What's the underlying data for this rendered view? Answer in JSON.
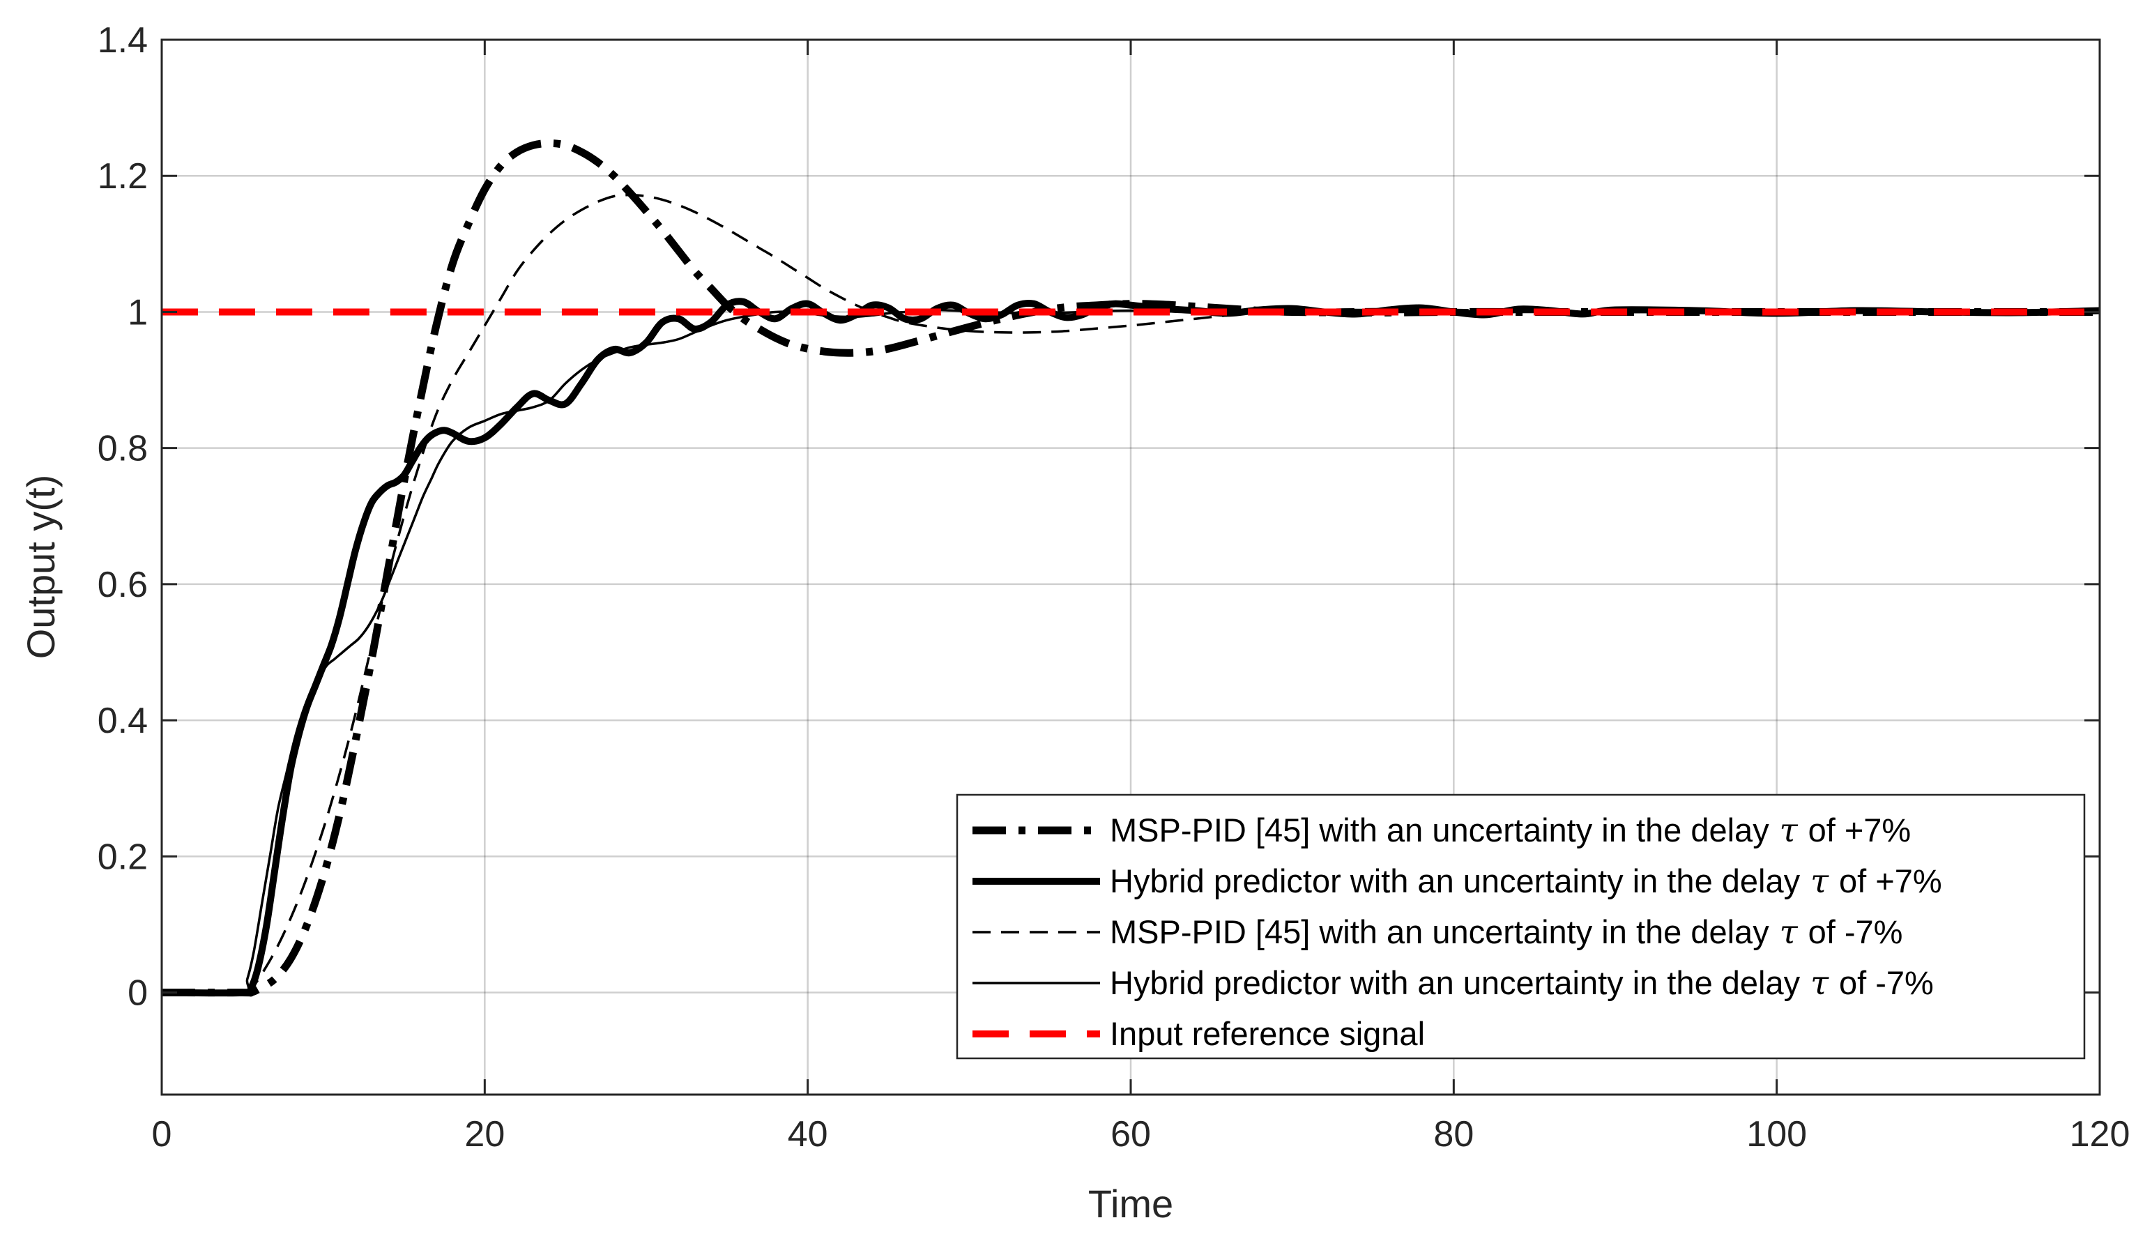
{
  "chart_data": {
    "type": "line",
    "title": "",
    "xlabel": "Time",
    "ylabel": "Output y(t)",
    "xlim": [
      0,
      120
    ],
    "ylim": [
      -0.15,
      1.4
    ],
    "xticks": [
      0,
      20,
      40,
      60,
      80,
      100,
      120
    ],
    "yticks": [
      0,
      0.2,
      0.4,
      0.6,
      0.8,
      1,
      1.2,
      1.4
    ],
    "xtick_labels": [
      "0",
      "20",
      "40",
      "60",
      "80",
      "100",
      "120"
    ],
    "ytick_labels": [
      "0",
      "0.2",
      "0.4",
      "0.6",
      "0.8",
      "1",
      "1.2",
      "1.4"
    ],
    "grid": true,
    "legend_position": "bottom-right",
    "series": [
      {
        "name": "MSP-PID [45] with an uncertainty in the delay τ of +7%",
        "legend_prefix": "MSP-PID [45] with an uncertainty in the delay",
        "legend_suffix": "of +7%",
        "style": "dashdot-thick",
        "color": "#000000",
        "x": [
          0,
          5,
          5.5,
          6,
          7,
          8,
          9,
          10,
          11,
          12,
          13,
          14,
          15,
          16,
          17,
          18,
          19,
          20,
          21,
          22,
          23,
          24,
          25,
          26,
          27,
          28,
          29,
          30,
          31,
          32,
          33,
          34,
          35,
          36,
          37,
          38,
          39,
          40,
          41,
          42,
          43,
          44,
          45,
          46,
          48,
          50,
          52,
          54,
          56,
          58,
          60,
          62,
          64,
          66,
          68,
          70,
          75,
          80,
          85,
          90,
          100,
          110,
          120
        ],
        "y": [
          0,
          0,
          0,
          0.005,
          0.02,
          0.05,
          0.1,
          0.17,
          0.26,
          0.37,
          0.49,
          0.62,
          0.75,
          0.87,
          0.98,
          1.07,
          1.13,
          1.18,
          1.215,
          1.235,
          1.245,
          1.248,
          1.245,
          1.235,
          1.22,
          1.2,
          1.175,
          1.148,
          1.12,
          1.09,
          1.06,
          1.035,
          1.01,
          0.99,
          0.975,
          0.962,
          0.952,
          0.946,
          0.942,
          0.94,
          0.94,
          0.942,
          0.946,
          0.952,
          0.965,
          0.978,
          0.99,
          1.0,
          1.007,
          1.01,
          1.012,
          1.011,
          1.008,
          1.005,
          1.002,
          1.0,
          0.999,
          1.0,
          1.0,
          1.0,
          1.0,
          1.0,
          1.0
        ]
      },
      {
        "name": "Hybrid predictor with an uncertainty in the delay τ of +7%",
        "legend_prefix": "Hybrid predictor with an uncertainty in the delay",
        "legend_suffix": "of +7%",
        "style": "solid-thick",
        "color": "#000000",
        "x": [
          0,
          5.2,
          5.6,
          6,
          6.5,
          7,
          7.5,
          8,
          8.5,
          9,
          9.5,
          10,
          10.5,
          11,
          11.5,
          12,
          12.5,
          13,
          13.5,
          14,
          14.5,
          15,
          15.5,
          16,
          16.5,
          17,
          17.5,
          18,
          19,
          20,
          21,
          22,
          23,
          24,
          25,
          26,
          27,
          28,
          29,
          30,
          31,
          32,
          33,
          34,
          35,
          36,
          37,
          38,
          39,
          40,
          41,
          42,
          43,
          44,
          45,
          46,
          47,
          48,
          49,
          50,
          51,
          52,
          53,
          54,
          55,
          56,
          57,
          58,
          59,
          60,
          62,
          64,
          66,
          68,
          70,
          72,
          74,
          76,
          78,
          80,
          82,
          84,
          86,
          88,
          90,
          95,
          100,
          105,
          110,
          115,
          120
        ],
        "y": [
          0,
          0,
          0.01,
          0.04,
          0.1,
          0.18,
          0.26,
          0.33,
          0.38,
          0.42,
          0.45,
          0.48,
          0.51,
          0.55,
          0.6,
          0.65,
          0.69,
          0.72,
          0.735,
          0.745,
          0.75,
          0.76,
          0.78,
          0.8,
          0.815,
          0.823,
          0.826,
          0.822,
          0.81,
          0.815,
          0.835,
          0.86,
          0.88,
          0.87,
          0.865,
          0.895,
          0.93,
          0.945,
          0.94,
          0.955,
          0.985,
          0.99,
          0.975,
          0.985,
          1.01,
          1.015,
          1.0,
          0.99,
          1.005,
          1.012,
          0.998,
          0.988,
          0.996,
          1.01,
          1.006,
          0.99,
          0.99,
          1.005,
          1.01,
          0.998,
          0.99,
          0.996,
          1.01,
          1.012,
          1.0,
          0.992,
          0.996,
          1.008,
          1.012,
          1.01,
          1.005,
          1.002,
          0.998,
          1.003,
          1.005,
          1.0,
          0.997,
          1.003,
          1.006,
          1.0,
          0.996,
          1.004,
          1.002,
          0.997,
          1.003,
          1.002,
          0.998,
          1.002,
          1.0,
          0.999,
          1.002
        ]
      },
      {
        "name": "MSP-PID [45] with an uncertainty in the delay τ of -7%",
        "legend_prefix": "MSP-PID [45] with an uncertainty in the delay",
        "legend_suffix": "of -7%",
        "style": "dashed-thin",
        "color": "#000000",
        "x": [
          0,
          5,
          5.5,
          6,
          7,
          8,
          9,
          10,
          11,
          12,
          13,
          14,
          15,
          16,
          17,
          18,
          19,
          20,
          21,
          22,
          23,
          24,
          25,
          26,
          27,
          28,
          29,
          30,
          31,
          32,
          33,
          34,
          35,
          36,
          37,
          38,
          39,
          40,
          41,
          42,
          43,
          44,
          45,
          46,
          48,
          50,
          52,
          54,
          56,
          58,
          60,
          62,
          64,
          66,
          68,
          70,
          75,
          80,
          85,
          90,
          100,
          110,
          120
        ],
        "y": [
          0,
          0,
          0.005,
          0.02,
          0.06,
          0.11,
          0.17,
          0.24,
          0.32,
          0.41,
          0.51,
          0.61,
          0.7,
          0.78,
          0.85,
          0.9,
          0.94,
          0.98,
          1.02,
          1.06,
          1.09,
          1.115,
          1.135,
          1.15,
          1.162,
          1.17,
          1.172,
          1.17,
          1.165,
          1.157,
          1.147,
          1.135,
          1.122,
          1.108,
          1.094,
          1.08,
          1.065,
          1.05,
          1.035,
          1.022,
          1.01,
          1.0,
          0.992,
          0.985,
          0.977,
          0.972,
          0.97,
          0.97,
          0.972,
          0.976,
          0.98,
          0.985,
          0.99,
          0.995,
          0.999,
          1.002,
          1.004,
          1.003,
          1.001,
          1.0,
          1.0,
          1.0,
          1.0
        ]
      },
      {
        "name": "Hybrid predictor with an uncertainty in the delay τ of -7%",
        "legend_prefix": "Hybrid predictor with an uncertainty in the delay",
        "legend_suffix": "of -7%",
        "style": "solid-thin",
        "color": "#000000",
        "x": [
          0,
          4.9,
          5.3,
          5.7,
          6.2,
          6.7,
          7.2,
          7.7,
          8.2,
          8.7,
          9.2,
          9.7,
          10.2,
          10.7,
          11.2,
          11.7,
          12.2,
          12.7,
          13.2,
          13.7,
          14.2,
          14.7,
          15.2,
          15.7,
          16.2,
          16.7,
          17.2,
          18,
          19,
          20,
          21,
          22,
          23,
          24,
          25,
          26,
          27,
          28,
          29,
          30,
          31,
          32,
          33,
          34,
          35,
          36,
          37,
          38,
          39,
          40,
          41,
          42,
          43,
          44,
          45,
          46,
          47,
          48,
          50,
          52,
          54,
          56,
          58,
          60,
          62,
          64,
          66,
          68,
          70,
          75,
          80,
          85,
          90,
          100,
          110,
          120
        ],
        "y": [
          0,
          0,
          0.02,
          0.06,
          0.13,
          0.2,
          0.27,
          0.32,
          0.37,
          0.41,
          0.44,
          0.46,
          0.48,
          0.49,
          0.5,
          0.51,
          0.52,
          0.535,
          0.555,
          0.58,
          0.61,
          0.64,
          0.67,
          0.7,
          0.73,
          0.755,
          0.78,
          0.81,
          0.83,
          0.84,
          0.85,
          0.855,
          0.86,
          0.87,
          0.895,
          0.915,
          0.93,
          0.94,
          0.948,
          0.952,
          0.955,
          0.96,
          0.97,
          0.98,
          0.988,
          0.993,
          0.997,
          1.0,
          1.0,
          0.998,
          0.995,
          0.993,
          0.993,
          0.995,
          0.998,
          1.0,
          1.002,
          1.003,
          1.001,
          0.999,
          0.998,
          0.999,
          1.001,
          1.002,
          1.001,
          1.0,
          0.999,
          1.0,
          1.0,
          1.0,
          1.0,
          1.0,
          1.0,
          1.0,
          1.0,
          1.0
        ]
      },
      {
        "name": "Input reference signal",
        "legend_prefix": "Input reference signal",
        "legend_suffix": "",
        "style": "dashed-red",
        "color": "#ff0000",
        "x": [
          0,
          120
        ],
        "y": [
          1,
          1
        ]
      }
    ]
  }
}
